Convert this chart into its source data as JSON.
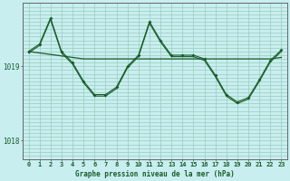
{
  "title": "Graphe pression niveau de la mer (hPa)",
  "bg_color": "#c8eef0",
  "grid_color_v": "#99ccbb",
  "grid_color_h": "#99ccbb",
  "line_color": "#1a5c28",
  "marker_color": "#1a5c28",
  "x_labels": [
    "0",
    "1",
    "2",
    "3",
    "4",
    "5",
    "6",
    "7",
    "8",
    "9",
    "10",
    "11",
    "12",
    "13",
    "14",
    "15",
    "16",
    "17",
    "18",
    "19",
    "20",
    "21",
    "22",
    "23"
  ],
  "y_ticks": [
    1018,
    1019
  ],
  "ylim": [
    1017.75,
    1019.85
  ],
  "xlim": [
    -0.5,
    23.5
  ],
  "series_wavy": [
    1019.2,
    1019.3,
    1019.65,
    1019.2,
    1019.05,
    1018.8,
    1018.62,
    1018.62,
    1018.72,
    1019.0,
    1019.15,
    1019.6,
    1019.35,
    1019.15,
    1019.15,
    1019.15,
    1019.1,
    1018.88,
    1018.62,
    1018.52,
    1018.58,
    1018.82,
    1019.08,
    1019.22
  ],
  "series_wavy2": [
    1019.18,
    1019.28,
    1019.63,
    1019.18,
    1019.03,
    1018.78,
    1018.6,
    1018.6,
    1018.7,
    1018.98,
    1019.13,
    1019.58,
    1019.33,
    1019.13,
    1019.13,
    1019.13,
    1019.08,
    1018.86,
    1018.6,
    1018.5,
    1018.56,
    1018.8,
    1019.06,
    1019.2
  ],
  "flat_line": [
    1019.2,
    1019.18,
    1019.16,
    1019.14,
    1019.12,
    1019.1,
    1019.1,
    1019.1,
    1019.1,
    1019.1,
    1019.1,
    1019.1,
    1019.1,
    1019.1,
    1019.1,
    1019.1,
    1019.1,
    1019.1,
    1019.1,
    1019.1,
    1019.1,
    1019.1,
    1019.1,
    1019.12
  ],
  "title_fontsize": 5.5,
  "tick_fontsize": 5.0,
  "ytick_fontsize": 5.5
}
